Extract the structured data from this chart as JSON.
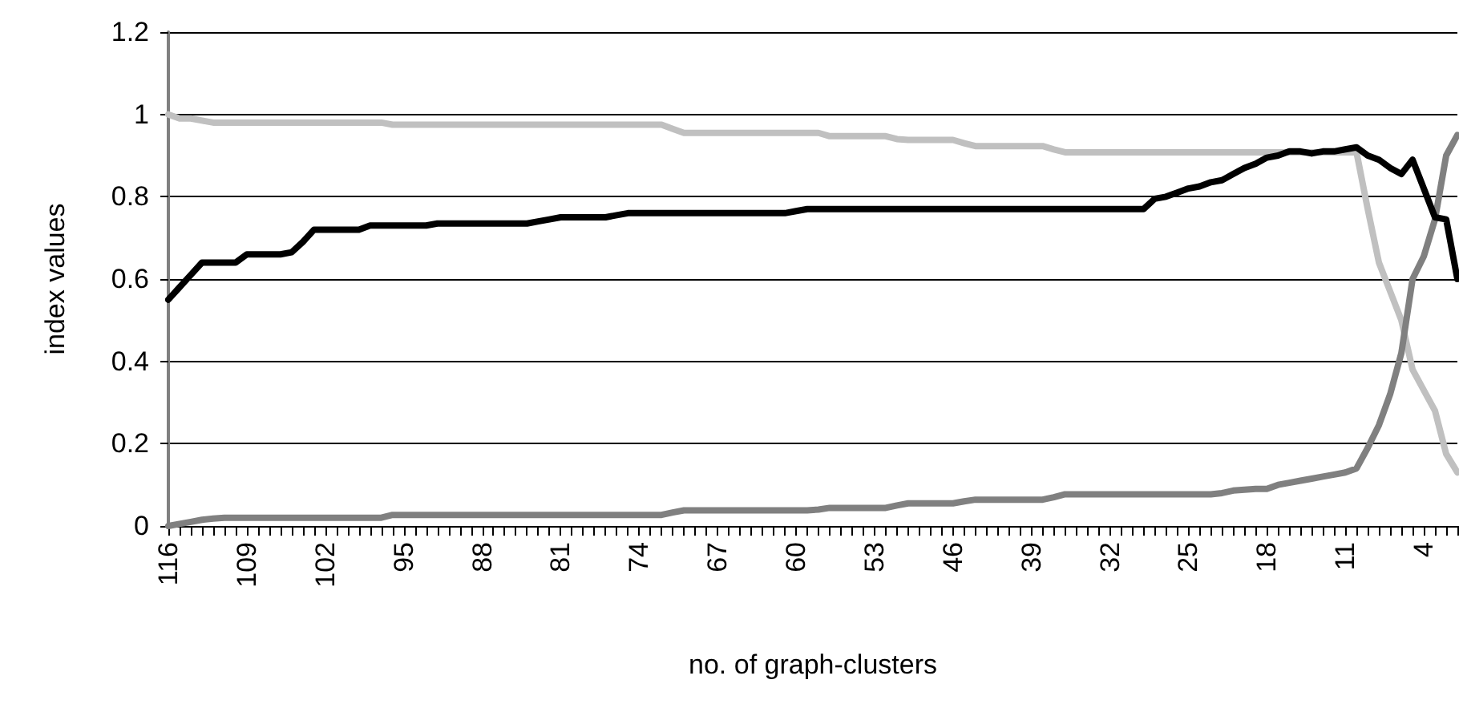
{
  "chart_data": {
    "type": "line",
    "xlabel": "no. of graph-clusters",
    "ylabel": "index values",
    "categories": [
      "116",
      null,
      null,
      null,
      null,
      null,
      null,
      "109",
      null,
      null,
      null,
      null,
      null,
      null,
      "102",
      null,
      null,
      null,
      null,
      null,
      null,
      "95",
      null,
      null,
      null,
      null,
      null,
      null,
      "88",
      null,
      null,
      null,
      null,
      null,
      null,
      "81",
      null,
      null,
      null,
      null,
      null,
      null,
      "74",
      null,
      null,
      null,
      null,
      null,
      null,
      "67",
      null,
      null,
      null,
      null,
      null,
      null,
      "60",
      null,
      null,
      null,
      null,
      null,
      null,
      "53",
      null,
      null,
      null,
      null,
      null,
      null,
      "46",
      null,
      null,
      null,
      null,
      null,
      null,
      "39",
      null,
      null,
      null,
      null,
      null,
      null,
      "32",
      null,
      null,
      null,
      null,
      null,
      null,
      "25",
      null,
      null,
      null,
      null,
      null,
      null,
      "18",
      null,
      null,
      null,
      null,
      null,
      null,
      "11",
      null,
      null,
      null,
      null,
      null,
      null,
      "4",
      null,
      null,
      null
    ],
    "series": [
      {
        "color": "#c0c0c0",
        "values": [
          1.0,
          0.99,
          0.99,
          0.985,
          0.98,
          0.98,
          0.98,
          0.98,
          0.98,
          0.98,
          0.98,
          0.98,
          0.98,
          0.98,
          0.98,
          0.98,
          0.98,
          0.98,
          0.98,
          0.98,
          0.975,
          0.975,
          0.975,
          0.975,
          0.975,
          0.975,
          0.975,
          0.975,
          0.975,
          0.975,
          0.975,
          0.975,
          0.975,
          0.975,
          0.975,
          0.975,
          0.975,
          0.975,
          0.975,
          0.975,
          0.975,
          0.975,
          0.975,
          0.975,
          0.975,
          0.965,
          0.955,
          0.955,
          0.955,
          0.955,
          0.955,
          0.955,
          0.955,
          0.955,
          0.955,
          0.955,
          0.955,
          0.955,
          0.955,
          0.947,
          0.947,
          0.947,
          0.947,
          0.947,
          0.947,
          0.94,
          0.938,
          0.938,
          0.938,
          0.938,
          0.938,
          0.93,
          0.923,
          0.923,
          0.923,
          0.923,
          0.923,
          0.923,
          0.923,
          0.915,
          0.908,
          0.908,
          0.908,
          0.908,
          0.908,
          0.908,
          0.908,
          0.908,
          0.908,
          0.908,
          0.908,
          0.908,
          0.908,
          0.908,
          0.908,
          0.908,
          0.908,
          0.908,
          0.908,
          0.908,
          0.908,
          0.908,
          0.908,
          0.908,
          0.908,
          0.908,
          0.908,
          0.77,
          0.64,
          0.57,
          0.5,
          0.38,
          0.33,
          0.28,
          0.175,
          0.13
        ]
      },
      {
        "color": "#808080",
        "values": [
          0.0,
          0.005,
          0.01,
          0.015,
          0.018,
          0.02,
          0.02,
          0.02,
          0.02,
          0.02,
          0.02,
          0.02,
          0.02,
          0.02,
          0.02,
          0.02,
          0.02,
          0.02,
          0.02,
          0.02,
          0.027,
          0.027,
          0.027,
          0.027,
          0.027,
          0.027,
          0.027,
          0.027,
          0.027,
          0.027,
          0.027,
          0.027,
          0.027,
          0.027,
          0.027,
          0.027,
          0.027,
          0.027,
          0.027,
          0.027,
          0.027,
          0.027,
          0.027,
          0.027,
          0.027,
          0.033,
          0.038,
          0.038,
          0.038,
          0.038,
          0.038,
          0.038,
          0.038,
          0.038,
          0.038,
          0.038,
          0.038,
          0.038,
          0.04,
          0.044,
          0.044,
          0.044,
          0.044,
          0.044,
          0.044,
          0.05,
          0.055,
          0.055,
          0.055,
          0.055,
          0.055,
          0.06,
          0.064,
          0.064,
          0.064,
          0.064,
          0.064,
          0.064,
          0.064,
          0.07,
          0.077,
          0.077,
          0.077,
          0.077,
          0.077,
          0.077,
          0.077,
          0.077,
          0.077,
          0.077,
          0.077,
          0.077,
          0.077,
          0.077,
          0.08,
          0.086,
          0.088,
          0.09,
          0.09,
          0.1,
          0.105,
          0.11,
          0.115,
          0.12,
          0.125,
          0.13,
          0.14,
          0.19,
          0.245,
          0.32,
          0.42,
          0.6,
          0.655,
          0.745,
          0.9,
          0.95
        ]
      },
      {
        "color": "#000000",
        "values": [
          0.55,
          0.58,
          0.61,
          0.64,
          0.64,
          0.64,
          0.64,
          0.66,
          0.66,
          0.66,
          0.66,
          0.665,
          0.69,
          0.72,
          0.72,
          0.72,
          0.72,
          0.72,
          0.73,
          0.73,
          0.73,
          0.73,
          0.73,
          0.73,
          0.735,
          0.735,
          0.735,
          0.735,
          0.735,
          0.735,
          0.735,
          0.735,
          0.735,
          0.74,
          0.745,
          0.75,
          0.75,
          0.75,
          0.75,
          0.75,
          0.755,
          0.76,
          0.76,
          0.76,
          0.76,
          0.76,
          0.76,
          0.76,
          0.76,
          0.76,
          0.76,
          0.76,
          0.76,
          0.76,
          0.76,
          0.76,
          0.765,
          0.77,
          0.77,
          0.77,
          0.77,
          0.77,
          0.77,
          0.77,
          0.77,
          0.77,
          0.77,
          0.77,
          0.77,
          0.77,
          0.77,
          0.77,
          0.77,
          0.77,
          0.77,
          0.77,
          0.77,
          0.77,
          0.77,
          0.77,
          0.77,
          0.77,
          0.77,
          0.77,
          0.77,
          0.77,
          0.77,
          0.77,
          0.795,
          0.8,
          0.81,
          0.82,
          0.825,
          0.835,
          0.84,
          0.855,
          0.87,
          0.88,
          0.895,
          0.9,
          0.91,
          0.91,
          0.905,
          0.91,
          0.91,
          0.915,
          0.92,
          0.9,
          0.89,
          0.87,
          0.855,
          0.89,
          0.82,
          0.75,
          0.745,
          0.6
        ]
      }
    ],
    "ylim": [
      0,
      1.2
    ],
    "yticks": [
      0,
      0.2,
      0.4,
      0.6,
      0.8,
      1,
      1.2
    ],
    "grid": "y",
    "marker": "none",
    "line_style": "solid"
  }
}
